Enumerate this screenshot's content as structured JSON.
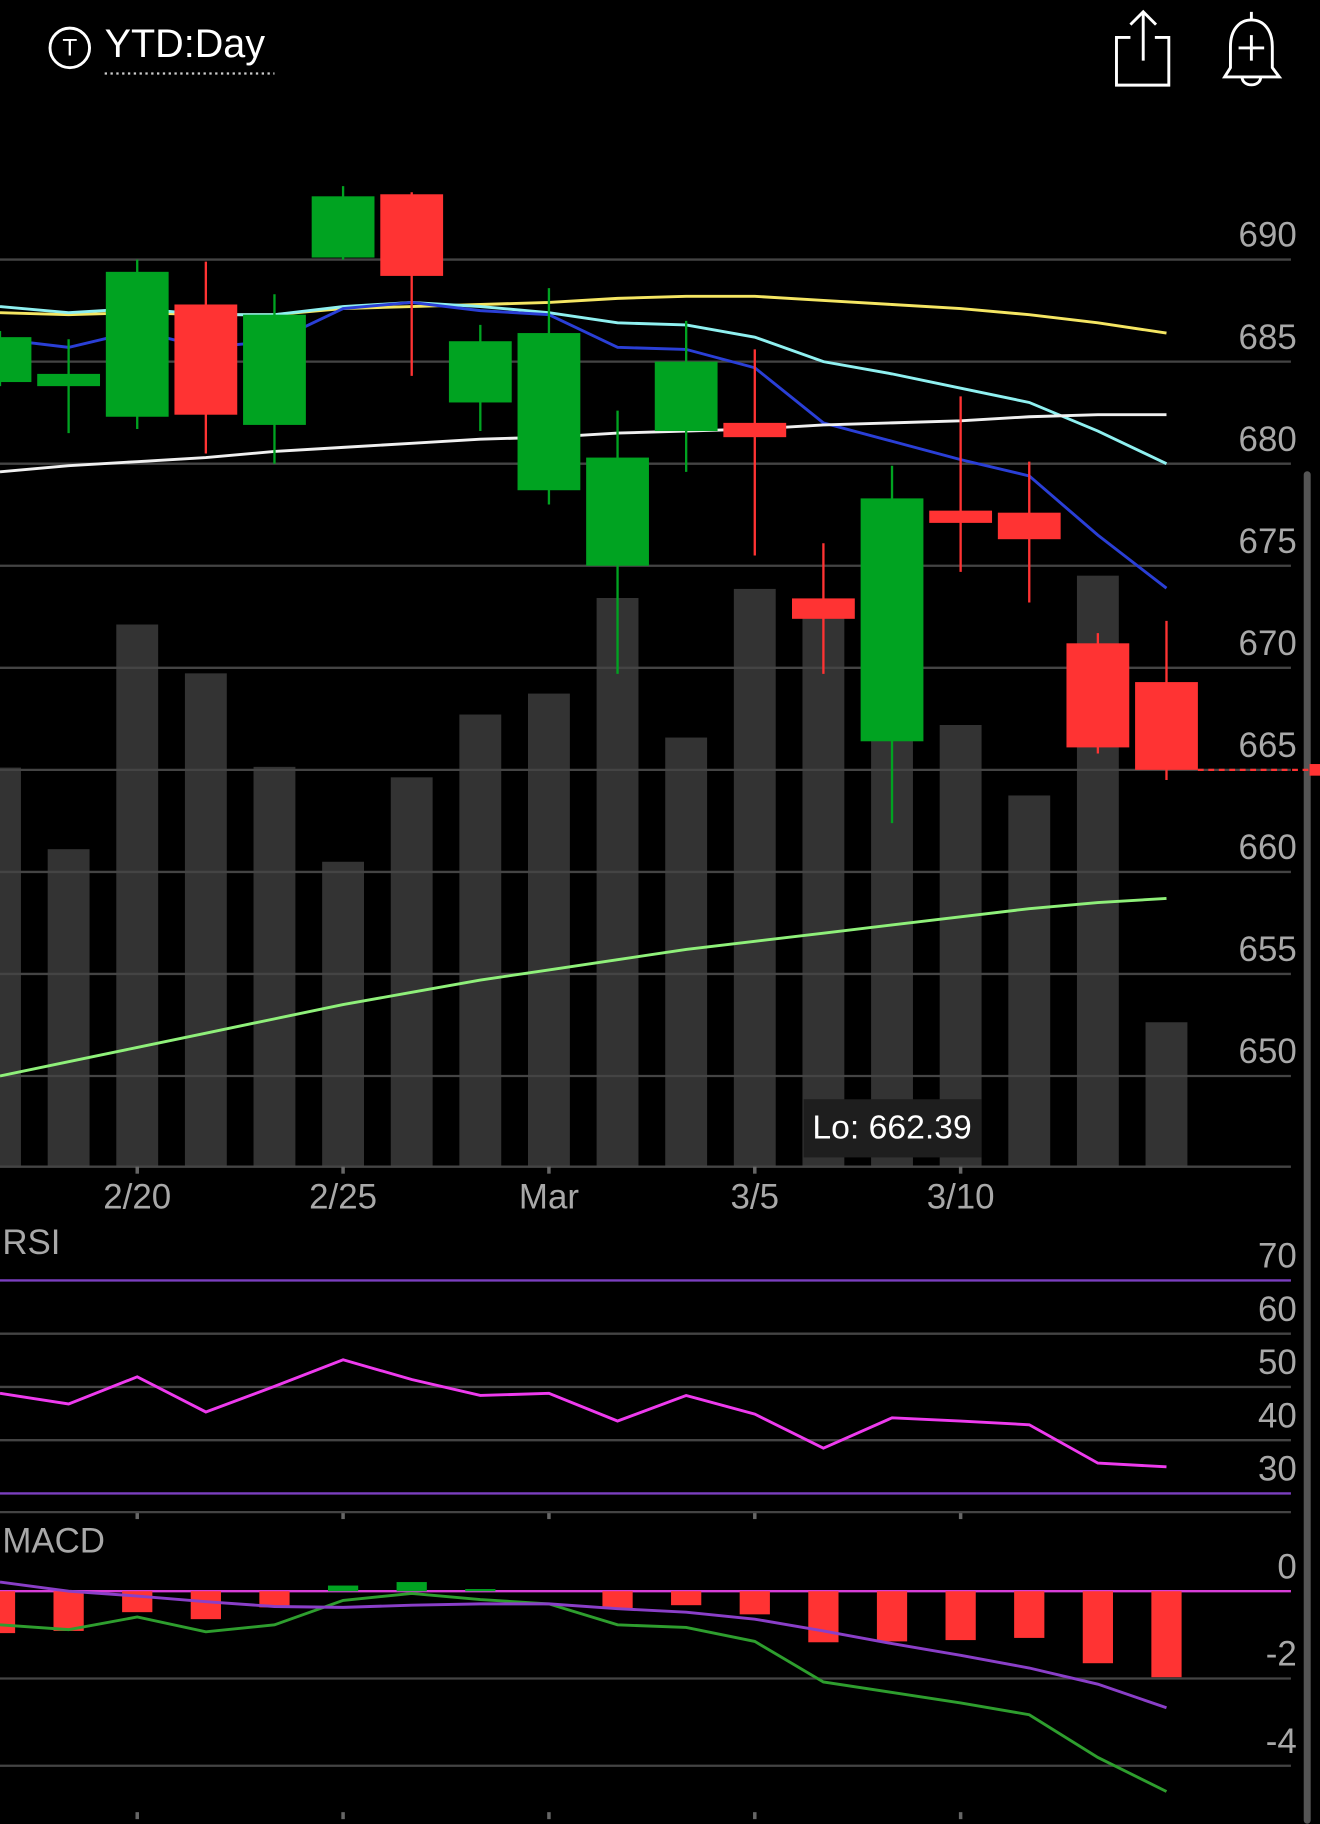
{
  "header": {
    "symbol_icon": "T",
    "timeframe": "YTD:Day"
  },
  "chart_data": [
    {
      "type": "candlestick",
      "categories": [
        null,
        null,
        "2/20",
        null,
        null,
        "2/25",
        null,
        null,
        "Mar",
        null,
        null,
        "3/5",
        null,
        null,
        "3/10",
        null,
        null,
        null
      ],
      "open": [
        684.0,
        683.8,
        682.3,
        687.8,
        681.9,
        690.1,
        693.2,
        683.0,
        678.7,
        675.0,
        681.6,
        682.0,
        673.4,
        666.4,
        677.7,
        677.6,
        671.2,
        669.3
      ],
      "high": [
        686.5,
        686.1,
        690.0,
        689.9,
        688.3,
        693.6,
        693.3,
        686.8,
        688.6,
        682.6,
        687.0,
        685.6,
        676.1,
        679.9,
        683.3,
        680.1,
        671.7,
        672.3
      ],
      "low": [
        683.8,
        681.5,
        681.7,
        680.5,
        680.0,
        690.0,
        684.3,
        681.6,
        678.0,
        669.7,
        679.6,
        675.5,
        669.7,
        662.39,
        674.7,
        673.2,
        665.8,
        664.5
      ],
      "close": [
        686.2,
        684.4,
        689.4,
        682.4,
        687.3,
        693.1,
        689.2,
        686.0,
        686.4,
        680.3,
        685.0,
        681.3,
        672.4,
        678.3,
        677.1,
        676.3,
        666.1,
        665.0
      ],
      "up_color": "#00a321",
      "down_color": "#ff3333",
      "moving_averages": [
        {
          "color": "#f5e663",
          "values": [
            687.4,
            687.3,
            687.4,
            687.3,
            687.3,
            687.6,
            687.7,
            687.8,
            687.9,
            688.1,
            688.2,
            688.2,
            688.0,
            687.8,
            687.6,
            687.3,
            686.9,
            686.4
          ]
        },
        {
          "color": "#8ff0f0",
          "values": [
            687.7,
            687.4,
            687.6,
            687.3,
            687.3,
            687.7,
            687.9,
            687.7,
            687.4,
            686.9,
            686.8,
            686.2,
            685.0,
            684.4,
            683.7,
            683.0,
            681.6,
            680.0
          ]
        },
        {
          "color": "#2a3fd6",
          "values": [
            686.1,
            685.7,
            686.5,
            685.7,
            686.0,
            687.6,
            687.9,
            687.5,
            687.3,
            685.7,
            685.6,
            684.7,
            682.0,
            681.1,
            680.2,
            679.4,
            676.5,
            673.9
          ]
        },
        {
          "color": "#f0f0f0",
          "values": [
            679.6,
            679.9,
            680.1,
            680.3,
            680.6,
            680.8,
            681.0,
            681.2,
            681.3,
            681.5,
            681.6,
            681.7,
            681.9,
            682.0,
            682.1,
            682.3,
            682.4,
            682.4
          ]
        },
        {
          "color": "#8ff07a",
          "values": [
            650.0,
            650.7,
            651.4,
            652.1,
            652.8,
            653.5,
            654.1,
            654.7,
            655.2,
            655.7,
            656.2,
            656.6,
            657.0,
            657.4,
            657.8,
            658.2,
            658.5,
            658.7
          ]
        }
      ],
      "volume": {
        "color": "#333333",
        "ylim": [
          0,
          100
        ],
        "values": [
          57.2,
          45.5,
          77.7,
          70.7,
          57.3,
          43.7,
          55.8,
          64.8,
          67.8,
          81.5,
          61.5,
          82.8,
          78.8,
          63.8,
          63.3,
          53.2,
          84.7,
          20.7
        ]
      },
      "last_price": 665.0,
      "annotation": "Lo: 662.39",
      "ylim": [
        645.5,
        695.5
      ],
      "yticks": [
        690,
        685,
        680,
        675,
        670,
        665,
        660,
        655,
        650
      ]
    },
    {
      "type": "line",
      "title": "RSI",
      "series": [
        {
          "color": "#ee3bee",
          "values": [
            48.8,
            46.8,
            51.9,
            45.3,
            50.1,
            55.1,
            51.4,
            48.4,
            48.8,
            43.6,
            48.4,
            44.9,
            38.5,
            44.2,
            43.6,
            42.9,
            35.7,
            35.0
          ]
        }
      ],
      "level_color": "#7b3fbf",
      "ylim": [
        26.5,
        80
      ],
      "yticks": [
        70,
        60,
        50,
        40,
        30
      ]
    },
    {
      "type": "macd",
      "title": "MACD",
      "histogram": {
        "up_color": "#00a321",
        "down_color": "#ff3333",
        "values": [
          -0.96,
          -0.91,
          -0.48,
          -0.64,
          -0.37,
          0.13,
          0.21,
          0.05,
          0.0,
          -0.4,
          -0.32,
          -0.53,
          -1.17,
          -1.15,
          -1.12,
          -1.07,
          -1.65,
          -1.97
        ]
      },
      "series": [
        {
          "color": "#2e9e2e",
          "values": [
            -0.77,
            -0.88,
            -0.59,
            -0.93,
            -0.77,
            -0.21,
            -0.05,
            -0.19,
            -0.29,
            -0.77,
            -0.83,
            -1.15,
            -2.08,
            -2.32,
            -2.56,
            -2.83,
            -3.81,
            -4.59
          ]
        },
        {
          "color": "#8a3fc8",
          "values": [
            0.21,
            0,
            -0.11,
            -0.24,
            -0.35,
            -0.37,
            -0.32,
            -0.29,
            -0.29,
            -0.4,
            -0.48,
            -0.64,
            -0.91,
            -1.2,
            -1.47,
            -1.76,
            -2.13,
            -2.67
          ]
        }
      ],
      "zero_color": "#d83fd8",
      "ylim": [
        -5.33,
        1.68
      ],
      "yticks": [
        0,
        -2,
        -4
      ]
    }
  ]
}
